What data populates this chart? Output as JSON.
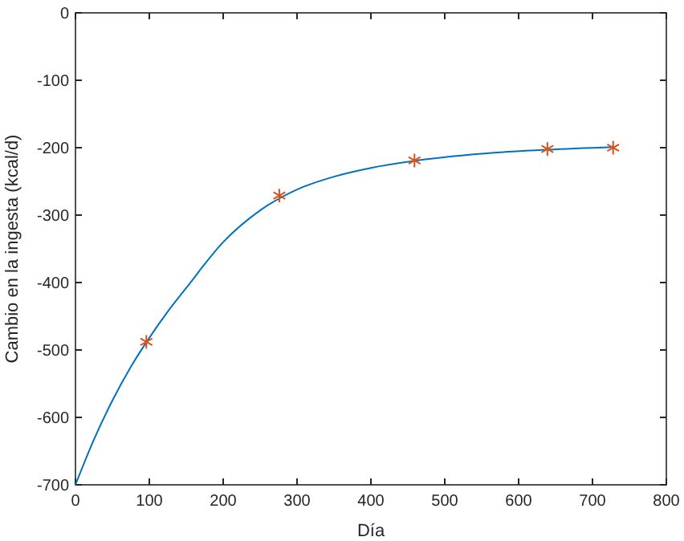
{
  "chart_data": {
    "type": "line",
    "xlabel": "Día",
    "ylabel": "Cambio en la ingesta (kcal/d)",
    "xlim": [
      0,
      800
    ],
    "ylim": [
      -700,
      0
    ],
    "xticks": [
      0,
      100,
      200,
      300,
      400,
      500,
      600,
      700,
      800
    ],
    "yticks": [
      -700,
      -600,
      -500,
      -400,
      -300,
      -200,
      -100,
      0
    ],
    "grid": false,
    "series": [
      {
        "color": "#0072bd",
        "marker": "none",
        "x": [
          0,
          25,
          50,
          75,
          100,
          125,
          150,
          200,
          250,
          300,
          350,
          400,
          456,
          550,
          639,
          730
        ],
        "values": [
          -700,
          -633,
          -575,
          -525,
          -482,
          -443,
          -408,
          -340,
          -293,
          -262,
          -243,
          -230,
          -220,
          -209,
          -203,
          -199
        ]
      },
      {
        "type": "scatter",
        "color": "#d95319",
        "marker": "cross",
        "x": [
          96,
          276,
          459,
          639,
          728
        ],
        "values": [
          -488,
          -271,
          -219,
          -202,
          -200
        ]
      }
    ]
  }
}
